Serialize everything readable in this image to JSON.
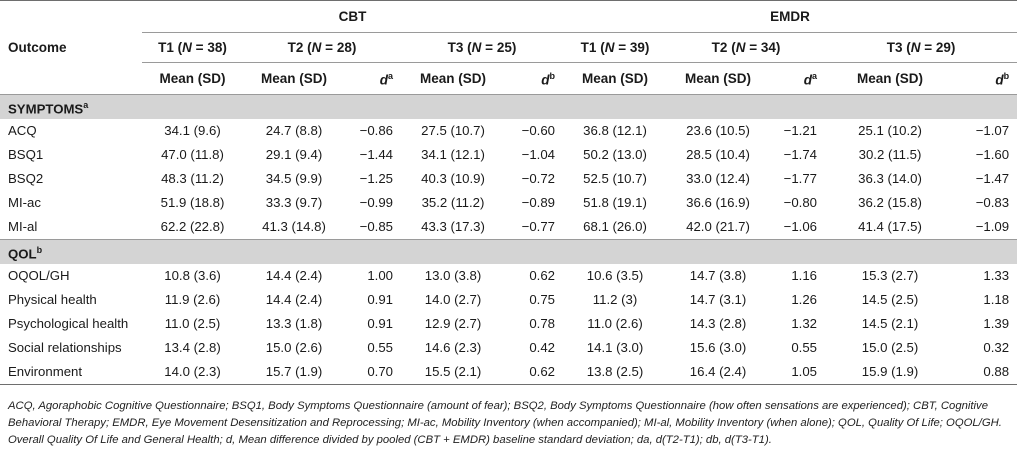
{
  "table": {
    "outcome_header": "Outcome",
    "groups": [
      "CBT",
      "EMDR"
    ],
    "timepoints": [
      {
        "label": "T1",
        "n_label": "N",
        "n": "38"
      },
      {
        "label": "T2",
        "n_label": "N",
        "n": "28"
      },
      {
        "label": "T3",
        "n_label": "N",
        "n": "25"
      },
      {
        "label": "T1",
        "n_label": "N",
        "n": "39"
      },
      {
        "label": "T2",
        "n_label": "N",
        "n": "34"
      },
      {
        "label": "T3",
        "n_label": "N",
        "n": "29"
      }
    ],
    "subheaders": {
      "mean_sd": "Mean (SD)",
      "d_symbol": "d",
      "d_a": "a",
      "d_b": "b"
    },
    "sections": [
      {
        "title": "SYMPTOMS",
        "sup": "a",
        "rows": [
          {
            "label": "ACQ",
            "cells": [
              "34.1 (9.6)",
              "24.7 (8.8)",
              "−0.86",
              "27.5 (10.7)",
              "−0.60",
              "36.8 (12.1)",
              "23.6 (10.5)",
              "−1.21",
              "25.1 (10.2)",
              "−1.07"
            ]
          },
          {
            "label": "BSQ1",
            "cells": [
              "47.0 (11.8)",
              "29.1 (9.4)",
              "−1.44",
              "34.1 (12.1)",
              "−1.04",
              "50.2 (13.0)",
              "28.5 (10.4)",
              "−1.74",
              "30.2 (11.5)",
              "−1.60"
            ]
          },
          {
            "label": "BSQ2",
            "cells": [
              "48.3 (11.2)",
              "34.5 (9.9)",
              "−1.25",
              "40.3 (10.9)",
              "−0.72",
              "52.5 (10.7)",
              "33.0 (12.4)",
              "−1.77",
              "36.3 (14.0)",
              "−1.47"
            ]
          },
          {
            "label": "MI-ac",
            "cells": [
              "51.9 (18.8)",
              "33.3 (9.7)",
              "−0.99",
              "35.2 (11.2)",
              "−0.89",
              "51.8 (19.1)",
              "36.6 (16.9)",
              "−0.80",
              "36.2 (15.8)",
              "−0.83"
            ]
          },
          {
            "label": "MI-al",
            "cells": [
              "62.2 (22.8)",
              "41.3 (14.8)",
              "−0.85",
              "43.3 (17.3)",
              "−0.77",
              "68.1 (26.0)",
              "42.0 (21.7)",
              "−1.06",
              "41.4 (17.5)",
              "−1.09"
            ]
          }
        ]
      },
      {
        "title": "QOL",
        "sup": "b",
        "rows": [
          {
            "label": "OQOL/GH",
            "cells": [
              "10.8 (3.6)",
              "14.4 (2.4)",
              "1.00",
              "13.0 (3.8)",
              "0.62",
              "10.6 (3.5)",
              "14.7 (3.8)",
              "1.16",
              "15.3 (2.7)",
              "1.33"
            ]
          },
          {
            "label": "Physical health",
            "cells": [
              "11.9 (2.6)",
              "14.4 (2.4)",
              "0.91",
              "14.0 (2.7)",
              "0.75",
              "11.2 (3)",
              "14.7 (3.1)",
              "1.26",
              "14.5 (2.5)",
              "1.18"
            ]
          },
          {
            "label": "Psychological health",
            "cells": [
              "11.0 (2.5)",
              "13.3 (1.8)",
              "0.91",
              "12.9 (2.7)",
              "0.78",
              "11.0 (2.6)",
              "14.3 (2.8)",
              "1.32",
              "14.5 (2.1)",
              "1.39"
            ]
          },
          {
            "label": "Social relationships",
            "cells": [
              "13.4 (2.8)",
              "15.0 (2.6)",
              "0.55",
              "14.6 (2.3)",
              "0.42",
              "14.1 (3.0)",
              "15.6 (3.0)",
              "0.55",
              "15.0 (2.5)",
              "0.32"
            ]
          },
          {
            "label": "Environment",
            "cells": [
              "14.0 (2.3)",
              "15.7 (1.9)",
              "0.70",
              "15.5 (2.1)",
              "0.62",
              "13.8 (2.5)",
              "16.4 (2.4)",
              "1.05",
              "15.9 (1.9)",
              "0.88"
            ]
          }
        ]
      }
    ],
    "footnote": "ACQ, Agoraphobic Cognitive Questionnaire; BSQ1, Body Symptoms Questionnaire (amount of fear); BSQ2, Body Symptoms Questionnaire (how often sensations are experienced); CBT, Cognitive Behavioral Therapy; EMDR, Eye Movement Desensitization and Reprocessing; MI-ac, Mobility Inventory (when accompanied); MI-al, Mobility Inventory (when alone); QOL, Quality Of Life; OQOL/GH. Overall Quality Of Life and General Health; d, Mean difference divided by pooled (CBT + EMDR) baseline standard deviation; da, d(T2-T1); db, d(T3-T1)."
  }
}
